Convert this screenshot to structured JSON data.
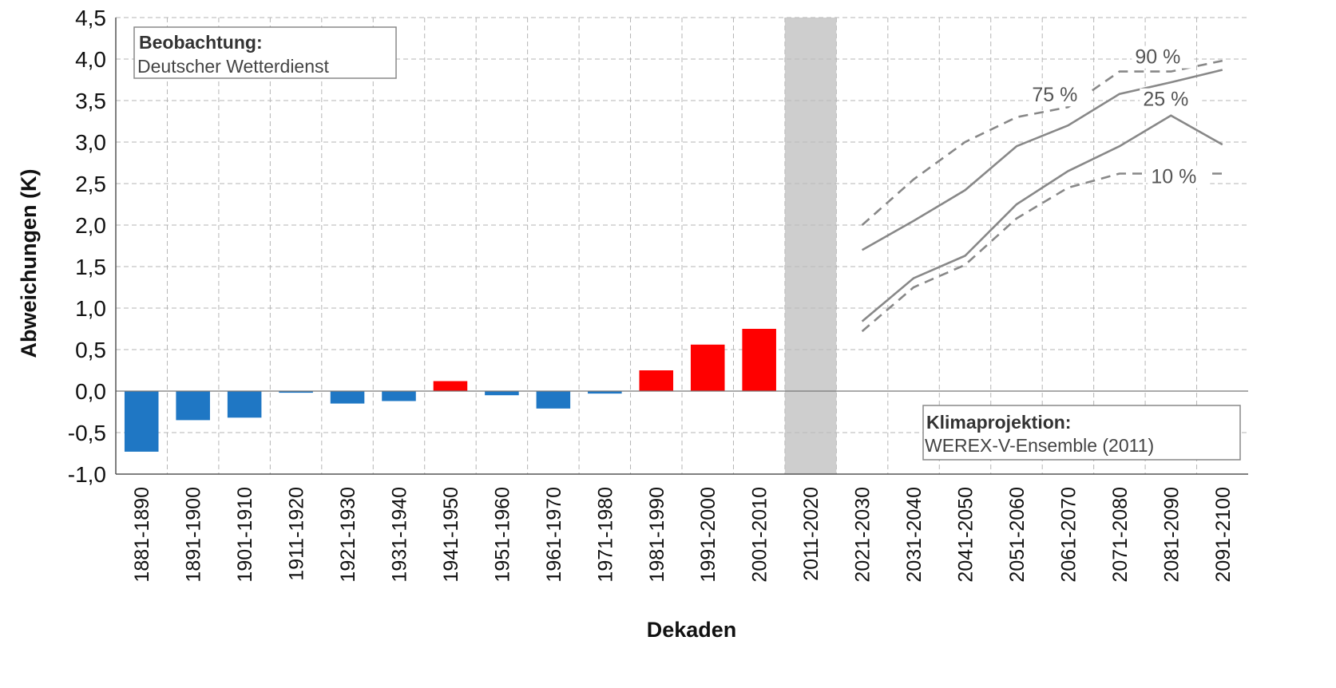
{
  "chart_data": {
    "type": "bar",
    "xlabel": "Dekaden",
    "ylabel": "Abweichungen (K)",
    "ylim": [
      -1.0,
      4.5
    ],
    "yticks": [
      "4,5",
      "4,0",
      "3,5",
      "3,0",
      "2,5",
      "2,0",
      "1,5",
      "1,0",
      "0,5",
      "0,0",
      "-0,5",
      "-1,0"
    ],
    "grid": true,
    "categories": [
      "1881-1890",
      "1891-1900",
      "1901-1910",
      "1911-1920",
      "1921-1930",
      "1931-1940",
      "1941-1950",
      "1951-1960",
      "1961-1970",
      "1971-1980",
      "1981-1990",
      "1991-2000",
      "2001-2010",
      "2011-2020",
      "2021-2030",
      "2031-2040",
      "2041-2050",
      "2051-2060",
      "2061-2070",
      "2071-2080",
      "2081-2090",
      "2091-2100"
    ],
    "observation": {
      "values": [
        -0.73,
        -0.35,
        -0.32,
        -0.02,
        -0.15,
        -0.12,
        0.12,
        -0.05,
        -0.21,
        -0.03,
        0.25,
        0.56,
        0.75
      ],
      "colors": {
        "positive": "#ff0000",
        "negative": "#1f77c4"
      }
    },
    "gap_category": "2011-2020",
    "projection": {
      "categories": [
        "2021-2030",
        "2031-2040",
        "2041-2050",
        "2051-2060",
        "2061-2070",
        "2071-2080",
        "2081-2090",
        "2091-2100"
      ],
      "series": [
        {
          "name": "90 %",
          "style": "dashed",
          "values": [
            2.0,
            2.55,
            3.0,
            3.3,
            3.42,
            3.85,
            3.85,
            3.98
          ]
        },
        {
          "name": "75 %",
          "style": "solid",
          "values": [
            1.7,
            2.05,
            2.42,
            2.95,
            3.2,
            3.58,
            3.72,
            3.87
          ]
        },
        {
          "name": "25 %",
          "style": "solid",
          "values": [
            0.84,
            1.36,
            1.63,
            2.25,
            2.65,
            2.95,
            3.32,
            2.97
          ]
        },
        {
          "name": "10 %",
          "style": "dashed",
          "values": [
            0.72,
            1.25,
            1.52,
            2.08,
            2.45,
            2.62,
            2.62,
            2.62
          ]
        }
      ],
      "line_color": "#888888"
    }
  },
  "legend_obs": {
    "title": "Beobachtung:",
    "subtitle": "Deutscher Wetterdienst"
  },
  "legend_proj": {
    "title": "Klimaprojektion:",
    "subtitle": "WEREX-V-Ensemble (2011)"
  }
}
